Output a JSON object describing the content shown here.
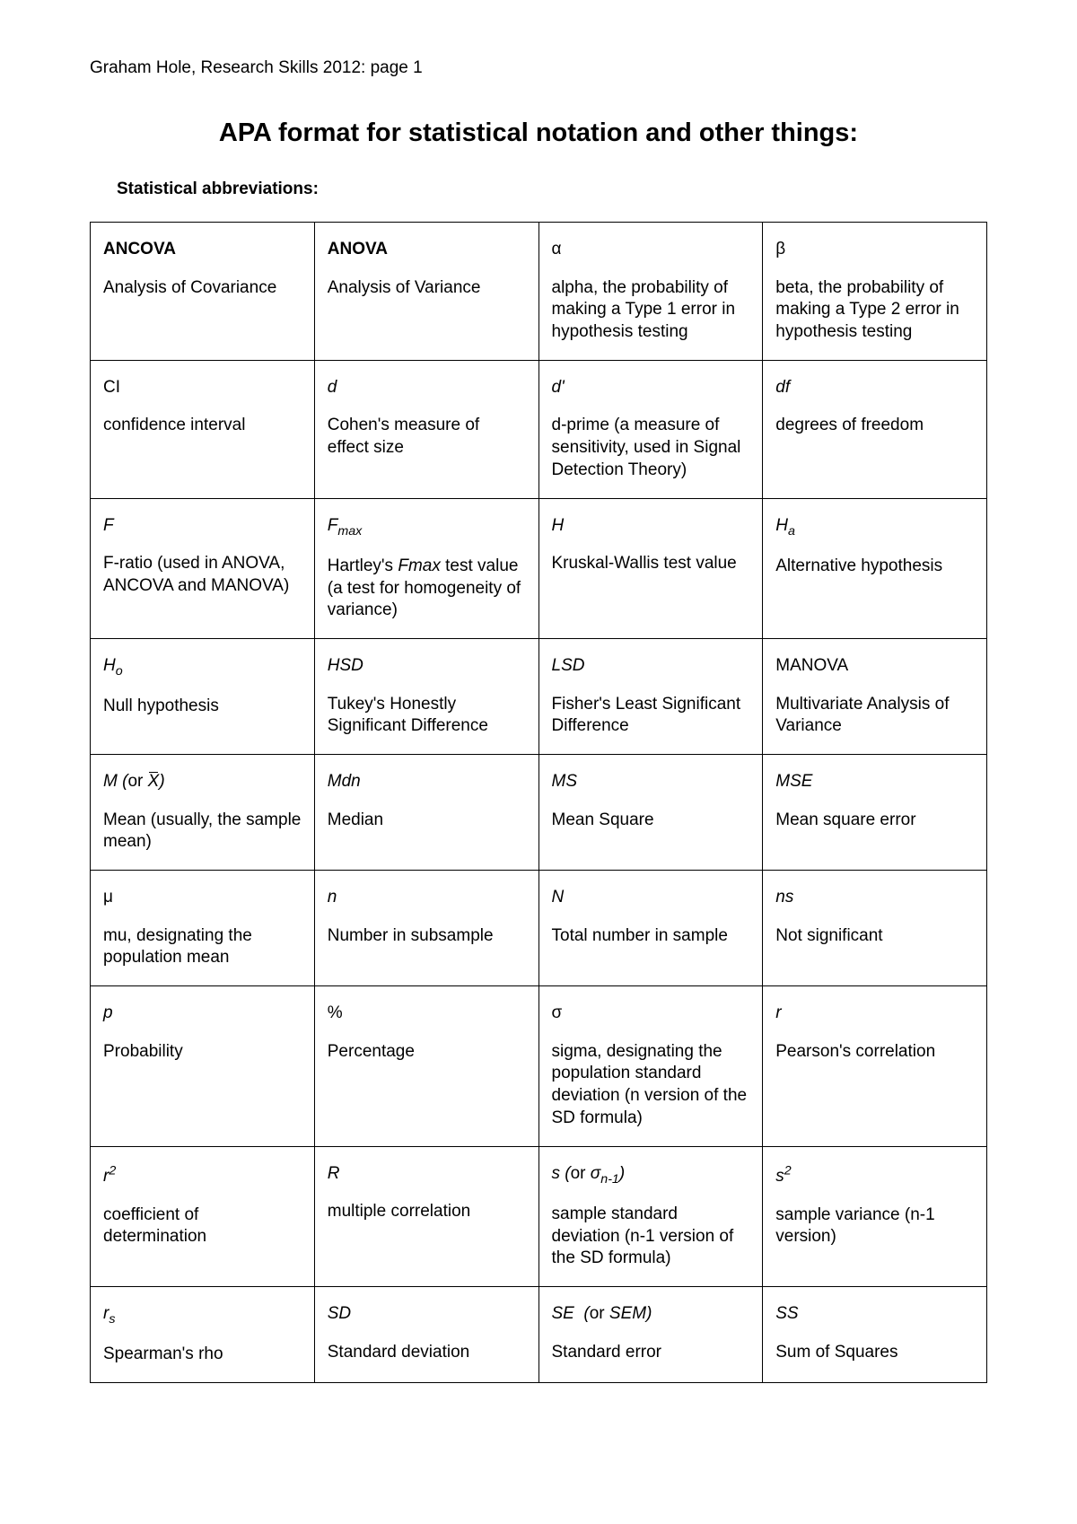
{
  "header": "Graham Hole, Research Skills 2012: page 1",
  "title": "APA format for statistical notation and other things:",
  "subtitle": "Statistical abbreviations:",
  "table": {
    "columns": 4,
    "rows": [
      [
        {
          "term": "ANCOVA",
          "style": "bold",
          "def": "Analysis of Covariance"
        },
        {
          "term": "ANOVA",
          "style": "bold",
          "def": "Analysis of Variance"
        },
        {
          "term": "α",
          "style": "plain",
          "def": "alpha, the probability of making a Type 1 error in hypothesis testing"
        },
        {
          "term": "β",
          "style": "plain",
          "def": "beta, the probability of making a Type 2 error in hypothesis testing"
        }
      ],
      [
        {
          "term": "CI",
          "style": "plain",
          "def": "confidence interval"
        },
        {
          "term": "d",
          "style": "italic",
          "def": "Cohen's measure of effect size"
        },
        {
          "term": "d'",
          "style": "italic",
          "def": "d-prime (a measure of sensitivity, used in Signal Detection Theory)"
        },
        {
          "term": "df",
          "style": "italic",
          "def": "degrees of freedom"
        }
      ],
      [
        {
          "term": "F",
          "style": "italic",
          "def": "F-ratio (used in ANOVA, ANCOVA and MANOVA)"
        },
        {
          "term_html": "<span class='ital-inline'>F<sub>max</sub></span>",
          "def_html": "Hartley's <span class='ital-inline'>Fmax</span> test value (a test for homogeneity of variance)"
        },
        {
          "term": "H",
          "style": "italic",
          "def": "Kruskal-Wallis test value"
        },
        {
          "term_html": "<span class='ital-inline'>H<sub>a</sub></span>",
          "def": "Alternative hypothesis"
        }
      ],
      [
        {
          "term_html": "<span class='ital-inline'>H<sub>o</sub></span>",
          "def": "Null hypothesis"
        },
        {
          "term": "HSD",
          "style": "italic",
          "def": "Tukey's Honestly Significant Difference"
        },
        {
          "term": "LSD",
          "style": "italic",
          "def": "Fisher's Least Significant Difference"
        },
        {
          "term": "MANOVA",
          "style": "plain",
          "def": "Multivariate Analysis of Variance"
        }
      ],
      [
        {
          "term_html": "<span class='ital-inline'>M (</span>or <span class='ital-inline xbar'>X</span><span class='ital-inline'>)</span>",
          "def": "Mean (usually, the sample mean)"
        },
        {
          "term": "Mdn",
          "style": "italic",
          "def": "Median"
        },
        {
          "term": "MS",
          "style": "italic",
          "def": "Mean Square"
        },
        {
          "term": "MSE",
          "style": "italic",
          "def": "Mean square error"
        }
      ],
      [
        {
          "term": "μ",
          "style": "plain",
          "def": "mu, designating the population mean"
        },
        {
          "term": "n",
          "style": "italic",
          "def": "Number in subsample"
        },
        {
          "term": "N",
          "style": "italic",
          "def": "Total number in sample"
        },
        {
          "term": "ns",
          "style": "italic",
          "def": "Not significant"
        }
      ],
      [
        {
          "term": "p",
          "style": "italic",
          "def": "Probability"
        },
        {
          "term": "%",
          "style": "plain",
          "def": "Percentage"
        },
        {
          "term": "σ",
          "style": "plain",
          "def": "sigma, designating the population standard deviation (n version of the SD formula)"
        },
        {
          "term": "r",
          "style": "italic",
          "def": "Pearson's correlation"
        }
      ],
      [
        {
          "term_html": "<span class='ital-inline'>r<sup>2</sup></span>",
          "def": "coefficient of determination"
        },
        {
          "term": "R",
          "style": "italic",
          "def": "multiple correlation"
        },
        {
          "term_html": "<span class='ital-inline'>s (</span>or <span class='ital-inline'>σ<sub>n-1</sub>)</span>",
          "def": "sample standard deviation (n-1 version of the SD formula)"
        },
        {
          "term_html": "<span class='ital-inline'>s<sup>2</sup></span>",
          "def": "sample variance (n-1 version)"
        }
      ],
      [
        {
          "term_html": "<span class='ital-inline'>r<sub>s</sub></span>",
          "def": "Spearman's rho"
        },
        {
          "term": "SD",
          "style": "italic",
          "def": "Standard deviation"
        },
        {
          "term_html": "<span class='ital-inline'>SE &nbsp;(</span>or <span class='ital-inline'>SEM)</span>",
          "def": "Standard error"
        },
        {
          "term": "SS",
          "style": "italic",
          "def": "Sum of Squares"
        }
      ]
    ]
  }
}
